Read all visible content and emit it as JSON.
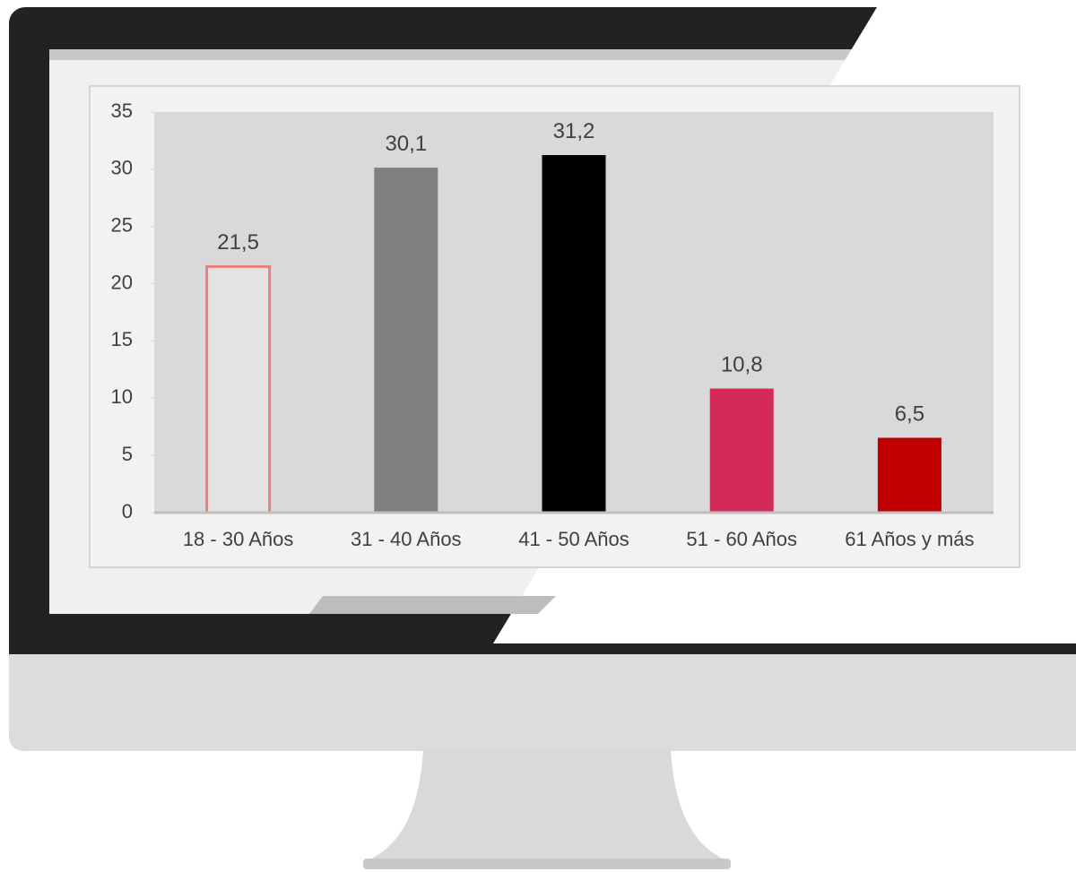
{
  "chart_data": {
    "type": "bar",
    "categories": [
      "18 - 30 Años",
      "31 - 40 Años",
      "41 - 50 Años",
      "51 - 60 Años",
      "61 Años y más"
    ],
    "values": [
      21.5,
      30.1,
      31.2,
      10.8,
      6.5
    ],
    "value_labels": [
      "21,5",
      "30,1",
      "31,2",
      "10,8",
      "6,5"
    ],
    "colors": [
      "#e3e3e3",
      "#7f7f7f",
      "#000000",
      "#d42a5a",
      "#c00000"
    ],
    "ylim": [
      0,
      35
    ],
    "yticks": [
      0,
      5,
      10,
      15,
      20,
      25,
      30,
      35
    ]
  }
}
